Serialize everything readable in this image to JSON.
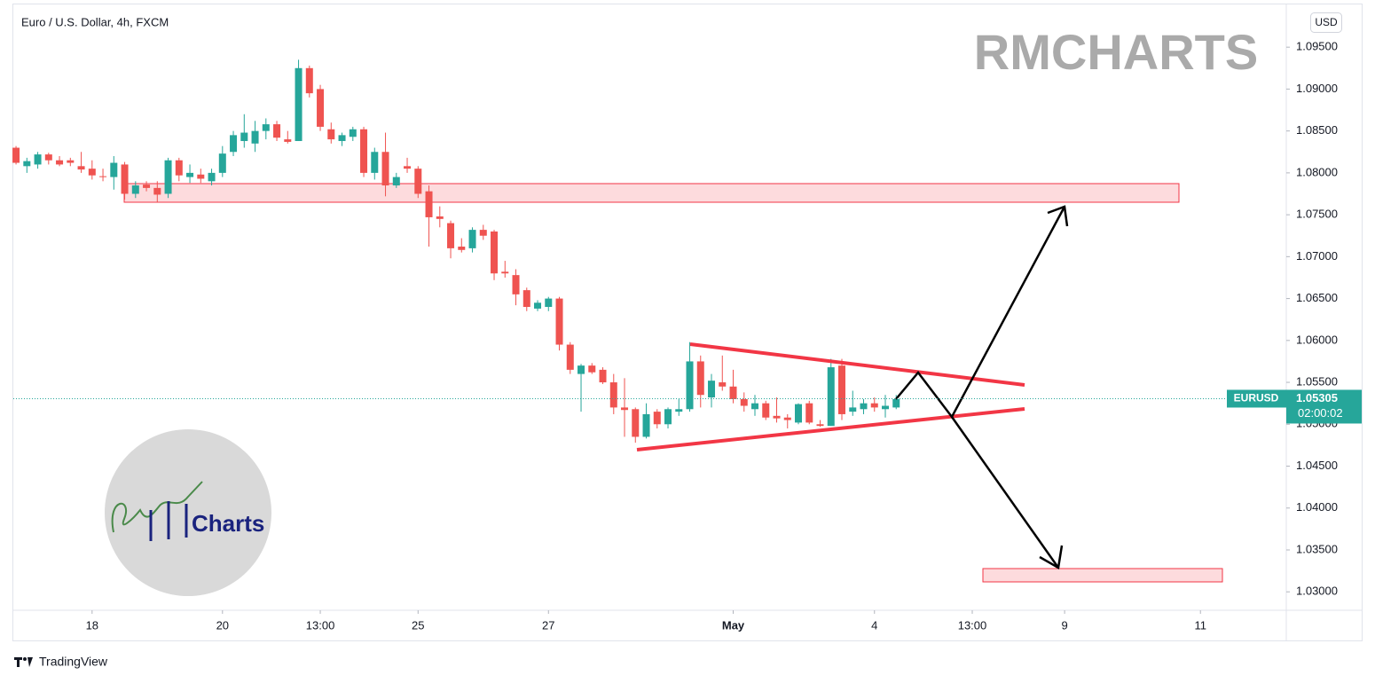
{
  "chart_data": {
    "type": "candlestick",
    "title": "Euro / U.S. Dollar, 4h, FXCM",
    "up_color": "#26a69a",
    "down_color": "#ef5350",
    "grid": false,
    "open": [
      1.083,
      1.0808,
      1.081,
      1.0822,
      1.0815,
      1.0815,
      1.0808,
      1.0805,
      1.0796,
      1.0795,
      1.081,
      1.0775,
      1.0786,
      1.0782,
      1.0775,
      1.0815,
      1.0795,
      1.0798,
      1.079,
      1.08,
      1.0825,
      1.0838,
      1.0835,
      1.085,
      1.0858,
      1.084,
      1.0838,
      1.0925,
      1.09,
      1.0852,
      1.0838,
      1.0843,
      1.0852,
      1.08,
      1.0825,
      1.0785,
      1.0808,
      1.0805,
      1.0778,
      1.0748,
      1.074,
      1.0712,
      1.071,
      1.0732,
      1.073,
      1.0682,
      1.0678,
      1.066,
      1.0638,
      1.064,
      1.065,
      1.0595,
      1.056,
      1.057,
      1.0565,
      1.055,
      1.052,
      1.0518,
      1.0485,
      1.0515,
      1.05,
      1.0515,
      1.0518,
      1.0575,
      1.0532,
      1.055,
      1.0545,
      1.053,
      1.0518,
      1.0525,
      1.051,
      1.0508,
      1.0502,
      1.0525,
      1.05,
      1.0498,
      1.057,
      1.0515,
      1.0518,
      1.0525,
      1.0518,
      1.052
    ],
    "high": [
      1.0832,
      1.0818,
      1.0825,
      1.0824,
      1.082,
      1.0818,
      1.0825,
      1.0815,
      1.0805,
      1.082,
      1.0813,
      1.079,
      1.079,
      1.079,
      1.0818,
      1.0818,
      1.081,
      1.0805,
      1.0805,
      1.0832,
      1.085,
      1.087,
      1.0862,
      1.0865,
      1.0862,
      1.085,
      1.0935,
      1.0928,
      1.0905,
      1.086,
      1.0848,
      1.0855,
      1.0855,
      1.083,
      1.0848,
      1.08,
      1.0818,
      1.0808,
      1.0785,
      1.076,
      1.0743,
      1.0722,
      1.0735,
      1.0738,
      1.0732,
      1.0695,
      1.0685,
      1.0663,
      1.0648,
      1.0652,
      1.0652,
      1.0598,
      1.0572,
      1.0573,
      1.0568,
      1.056,
      1.0555,
      1.052,
      1.0525,
      1.0518,
      1.052,
      1.053,
      1.0598,
      1.0582,
      1.056,
      1.0582,
      1.0565,
      1.0538,
      1.0535,
      1.0528,
      1.0532,
      1.0512,
      1.0525,
      1.0528,
      1.0505,
      1.0578,
      1.0578,
      1.054,
      1.053,
      1.0532,
      1.0535,
      1.0535
    ],
    "low": [
      1.081,
      1.08,
      1.0805,
      1.081,
      1.0808,
      1.0808,
      1.08,
      1.0792,
      1.079,
      1.078,
      1.0768,
      1.077,
      1.0778,
      1.0765,
      1.077,
      1.079,
      1.0788,
      1.0788,
      1.0785,
      1.0795,
      1.082,
      1.083,
      1.0825,
      1.084,
      1.0838,
      1.0835,
      1.0838,
      1.089,
      1.085,
      1.0835,
      1.0832,
      1.0838,
      1.0795,
      1.0792,
      1.0772,
      1.0782,
      1.08,
      1.077,
      1.0712,
      1.0735,
      1.0698,
      1.0705,
      1.0705,
      1.072,
      1.0672,
      1.0675,
      1.0642,
      1.0635,
      1.0635,
      1.0635,
      1.0588,
      1.056,
      1.0515,
      1.056,
      1.0548,
      1.0512,
      1.0485,
      1.0478,
      1.0483,
      1.0495,
      1.0495,
      1.051,
      1.0515,
      1.052,
      1.052,
      1.054,
      1.0525,
      1.0515,
      1.051,
      1.0505,
      1.0502,
      1.0495,
      1.05,
      1.05,
      1.0497,
      1.0498,
      1.0505,
      1.051,
      1.0512,
      1.0515,
      1.0508,
      1.0518
    ],
    "close": [
      1.0812,
      1.0814,
      1.0822,
      1.0815,
      1.081,
      1.0812,
      1.0804,
      1.0797,
      1.0795,
      1.0812,
      1.0775,
      1.0785,
      1.0782,
      1.0774,
      1.0815,
      1.0797,
      1.08,
      1.0793,
      1.08,
      1.0823,
      1.0845,
      1.0848,
      1.085,
      1.0858,
      1.0842,
      1.0837,
      1.0925,
      1.0895,
      1.0855,
      1.084,
      1.0845,
      1.0852,
      1.08,
      1.0825,
      1.0785,
      1.0795,
      1.0805,
      1.0775,
      1.0747,
      1.0745,
      1.071,
      1.0708,
      1.0732,
      1.0725,
      1.068,
      1.068,
      1.0655,
      1.064,
      1.0645,
      1.065,
      1.0595,
      1.0565,
      1.057,
      1.0562,
      1.055,
      1.052,
      1.0517,
      1.0485,
      1.0512,
      1.05,
      1.0518,
      1.0518,
      1.0575,
      1.0535,
      1.0552,
      1.0545,
      1.053,
      1.0522,
      1.0525,
      1.0508,
      1.0507,
      1.0505,
      1.0524,
      1.0502,
      1.0498,
      1.0568,
      1.0512,
      1.052,
      1.0525,
      1.052,
      1.0522,
      1.053
    ],
    "xlim": [
      -0.25,
      116.9
    ],
    "xticks": [
      {
        "value": 7,
        "label": "18"
      },
      {
        "value": 19,
        "label": "20"
      },
      {
        "value": 28,
        "label": "13:00"
      },
      {
        "value": 37,
        "label": "25"
      },
      {
        "value": 49,
        "label": "27"
      },
      {
        "value": 66,
        "label": "May"
      },
      {
        "value": 79,
        "label": "4"
      },
      {
        "value": 88,
        "label": "13:00"
      },
      {
        "value": 96.5,
        "label": "9"
      },
      {
        "value": 109,
        "label": "11"
      }
    ],
    "ylim": [
      1.0278,
      1.1001
    ],
    "yticks": [
      {
        "value": 1.095,
        "label": "1.09500"
      },
      {
        "value": 1.09,
        "label": "1.09000"
      },
      {
        "value": 1.085,
        "label": "1.08500"
      },
      {
        "value": 1.08,
        "label": "1.08000"
      },
      {
        "value": 1.075,
        "label": "1.07500"
      },
      {
        "value": 1.07,
        "label": "1.07000"
      },
      {
        "value": 1.065,
        "label": "1.06500"
      },
      {
        "value": 1.06,
        "label": "1.06000"
      },
      {
        "value": 1.055,
        "label": "1.05500"
      },
      {
        "value": 1.05,
        "label": "1.05000"
      },
      {
        "value": 1.045,
        "label": "1.04500"
      },
      {
        "value": 1.04,
        "label": "1.04000"
      },
      {
        "value": 1.035,
        "label": "1.03500"
      },
      {
        "value": 1.03,
        "label": "1.03000"
      }
    ],
    "last_price": 1.05305,
    "symbol": "EURUSD",
    "countdown": "02:00:02",
    "currency": "USD",
    "watermark": "RMCHARTS",
    "logo_text": "Charts"
  },
  "footer": "TradingView"
}
